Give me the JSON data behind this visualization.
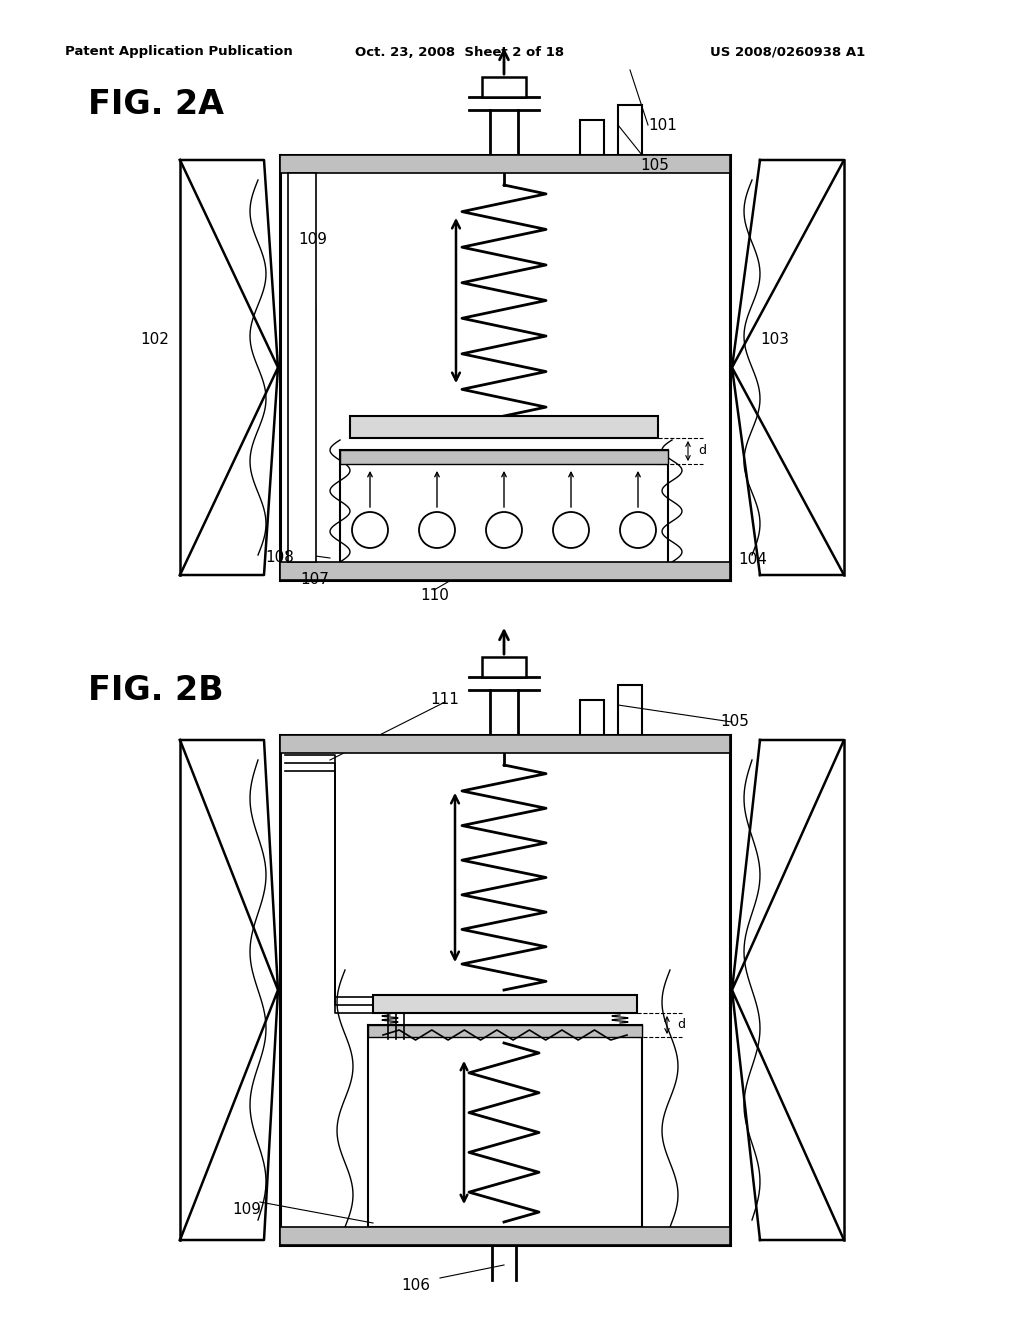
{
  "background_color": "#ffffff",
  "header_text": "Patent Application Publication",
  "header_date": "Oct. 23, 2008  Sheet 2 of 18",
  "header_patent": "US 2008/0260938 A1",
  "fig2a_label": "FIG. 2A",
  "fig2b_label": "FIG. 2B"
}
